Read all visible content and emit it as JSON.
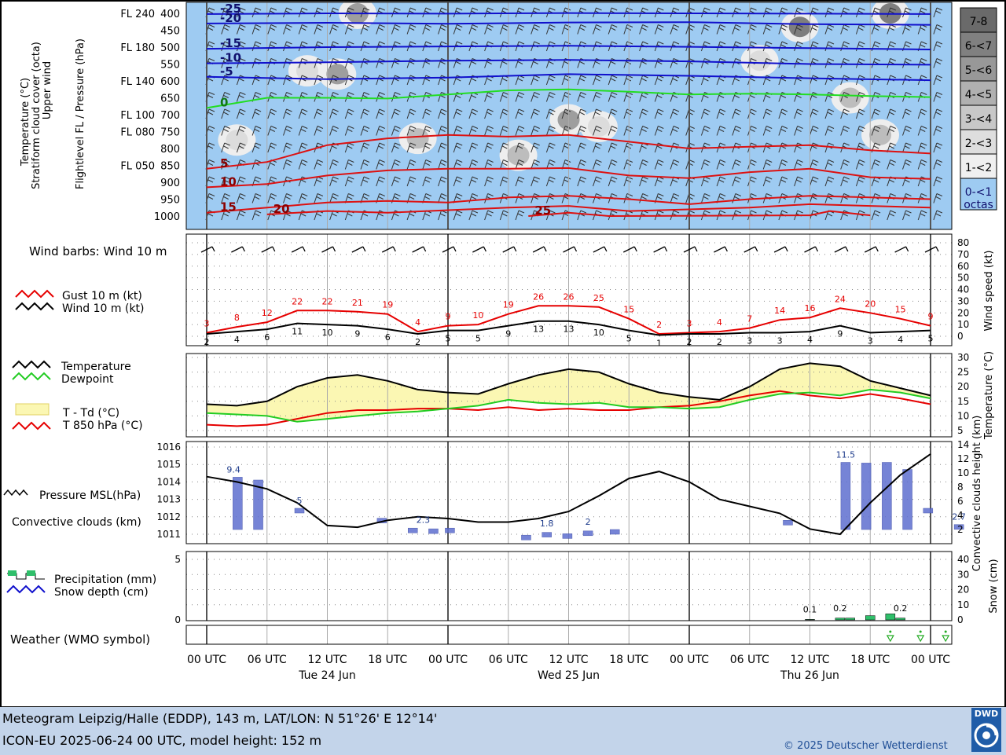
{
  "footer": {
    "line1": "Meteogram Leipzig/Halle (EDDP), 143 m, LAT/LON: N 51°26' E 12°14'",
    "line2": "ICON-EU 2025-06-24 00 UTC, model height: 152 m",
    "copyright": "© 2025 Deutscher Wetterdienst",
    "logo_text": "DWD"
  },
  "panel_labels": {
    "upper": [
      "Temperature (°C)",
      "Stratiform cloud cover (octa)",
      "Upper wind"
    ],
    "upper_axis": "Flightlevel FL / Pressure (hPa)",
    "wind_barbs": "Wind barbs: Wind 10 m",
    "gust": "Gust 10 m (kt)",
    "wind": "Wind 10 m (kt)",
    "wind_axis": "Wind speed (kt)",
    "temperature": "Temperature",
    "dewpoint": "Dewpoint",
    "t_td": "T - Td (°C)",
    "t850": "T 850 hPa (°C)",
    "temp_axis": "Temperature (°C)",
    "pressure": "Pressure MSL(hPa)",
    "convective": "Convective clouds (km)",
    "conv_axis": "Convective clouds height (km)",
    "precip": "Precipitation (mm)",
    "snow": "Snow depth (cm)",
    "snow_axis": "Snow (cm)",
    "weather": "Weather (WMO symbol)"
  },
  "colors": {
    "sky": "#9ecbf2",
    "gust": "#e60000",
    "wind": "#000000",
    "temperature": "#000000",
    "dewpoint": "#22cc22",
    "t_td_fill": "#fbf7b3",
    "t850": "#e60000",
    "iso_neg": "#1010cc",
    "iso_zero": "#22dd22",
    "iso_pos": "#dd1111",
    "conv_bar": "#2a3f9c",
    "precip": "#2fbf6a",
    "footer_bg": "#c3d4ea"
  },
  "x_axis": {
    "ticks": [
      "00 UTC",
      "06 UTC",
      "12 UTC",
      "18 UTC",
      "00 UTC",
      "06 UTC",
      "12 UTC",
      "18 UTC",
      "00 UTC",
      "06 UTC",
      "12 UTC",
      "18 UTC",
      "00 UTC"
    ],
    "days": [
      "Tue 24 Jun",
      "Wed 25 Jun",
      "Thu 26 Jun"
    ]
  },
  "cloud_legend": [
    "7-8",
    "6-<7",
    "5-<6",
    "4-<5",
    "3-<4",
    "2-<3",
    "1-<2",
    "0-<1 octas"
  ],
  "chart_data": [
    {
      "type": "heatmap",
      "title": "Temperature / Stratiform cloud cover / Upper wind",
      "pressure_levels_hPa": [
        400,
        450,
        500,
        550,
        600,
        650,
        700,
        750,
        800,
        850,
        900,
        950,
        1000
      ],
      "flight_levels": {
        "400": "FL 240",
        "500": "FL 180",
        "600": "FL 140",
        "700": "FL 100",
        "750": "FL 080",
        "850": "FL 050"
      },
      "isotherms": [
        {
          "value": -25,
          "label": "-25",
          "points": [
            [
              0,
              402
            ],
            [
              12,
              400
            ],
            [
              24,
              401
            ],
            [
              36,
              399
            ],
            [
              48,
              400
            ],
            [
              60,
              401
            ],
            [
              72,
              402
            ]
          ]
        },
        {
          "value": -20,
          "label": "-20",
          "points": [
            [
              0,
              430
            ],
            [
              12,
              428
            ],
            [
              24,
              431
            ],
            [
              36,
              427
            ],
            [
              48,
              426
            ],
            [
              60,
              432
            ],
            [
              72,
              434
            ]
          ]
        },
        {
          "value": -15,
          "label": "-15",
          "points": [
            [
              0,
              505
            ],
            [
              12,
              500
            ],
            [
              24,
              498
            ],
            [
              36,
              496
            ],
            [
              48,
              499
            ],
            [
              60,
              503
            ],
            [
              72,
              507
            ]
          ]
        },
        {
          "value": -10,
          "label": "-10",
          "points": [
            [
              0,
              548
            ],
            [
              12,
              545
            ],
            [
              24,
              540
            ],
            [
              36,
              538
            ],
            [
              48,
              542
            ],
            [
              60,
              550
            ],
            [
              72,
              552
            ]
          ]
        },
        {
          "value": -5,
          "label": "-5",
          "points": [
            [
              0,
              588
            ],
            [
              12,
              595
            ],
            [
              24,
              590
            ],
            [
              36,
              580
            ],
            [
              48,
              585
            ],
            [
              60,
              592
            ],
            [
              72,
              598
            ]
          ]
        },
        {
          "value": 0,
          "label": "0",
          "points": [
            [
              0,
              680
            ],
            [
              6,
              650
            ],
            [
              12,
              650
            ],
            [
              18,
              652
            ],
            [
              24,
              640
            ],
            [
              30,
              628
            ],
            [
              36,
              625
            ],
            [
              42,
              632
            ],
            [
              48,
              640
            ],
            [
              54,
              638
            ],
            [
              60,
              640
            ],
            [
              66,
              645
            ],
            [
              72,
              648
            ]
          ]
        },
        {
          "value": 5,
          "label": "5",
          "points": [
            [
              0,
              860
            ],
            [
              6,
              840
            ],
            [
              12,
              790
            ],
            [
              18,
              770
            ],
            [
              24,
              760
            ],
            [
              30,
              765
            ],
            [
              36,
              760
            ],
            [
              42,
              780
            ],
            [
              48,
              800
            ],
            [
              54,
              795
            ],
            [
              60,
              790
            ],
            [
              66,
              805
            ],
            [
              72,
              815
            ]
          ]
        },
        {
          "value": 10,
          "label": "10",
          "points": [
            [
              0,
              915
            ],
            [
              6,
              905
            ],
            [
              12,
              880
            ],
            [
              18,
              865
            ],
            [
              24,
              860
            ],
            [
              30,
              860
            ],
            [
              36,
              858
            ],
            [
              42,
              880
            ],
            [
              48,
              888
            ],
            [
              54,
              870
            ],
            [
              60,
              860
            ],
            [
              66,
              885
            ],
            [
              72,
              890
            ]
          ]
        },
        {
          "value": 15,
          "label": "15",
          "points": [
            [
              0,
              990
            ],
            [
              6,
              975
            ],
            [
              12,
              960
            ],
            [
              18,
              955
            ],
            [
              24,
              960
            ],
            [
              30,
              945
            ],
            [
              36,
              940
            ],
            [
              42,
              950
            ],
            [
              48,
              965
            ],
            [
              54,
              950
            ],
            [
              60,
              940
            ],
            [
              66,
              945
            ],
            [
              72,
              950
            ]
          ]
        },
        {
          "value": 20,
          "label": "20",
          "points": [
            [
              6,
              995
            ],
            [
              12,
              985
            ],
            [
              18,
              990
            ],
            [
              30,
              975
            ],
            [
              36,
              970
            ],
            [
              42,
              985
            ],
            [
              54,
              975
            ],
            [
              60,
              965
            ],
            [
              66,
              970
            ],
            [
              72,
              975
            ]
          ]
        },
        {
          "value": 25,
          "label": "25",
          "points": [
            [
              32,
              1000
            ],
            [
              36,
              990
            ],
            [
              40,
              1000
            ],
            [
              60,
              998
            ],
            [
              62,
              985
            ],
            [
              66,
              998
            ]
          ]
        }
      ],
      "cloud_patches_octa": [
        {
          "t": 3,
          "p": 775,
          "octa": "2-<3"
        },
        {
          "t": 10,
          "p": 570,
          "octa": "2-<3"
        },
        {
          "t": 13,
          "p": 580,
          "octa": "4-<5"
        },
        {
          "t": 15,
          "p": 400,
          "octa": "4-<5"
        },
        {
          "t": 21,
          "p": 770,
          "octa": "3-<4"
        },
        {
          "t": 31,
          "p": 820,
          "octa": "3-<4"
        },
        {
          "t": 36,
          "p": 715,
          "octa": "4-<5"
        },
        {
          "t": 39,
          "p": 735,
          "octa": "2-<3"
        },
        {
          "t": 55,
          "p": 540,
          "octa": "2-<3"
        },
        {
          "t": 59,
          "p": 440,
          "octa": "5-<6"
        },
        {
          "t": 64,
          "p": 650,
          "octa": "3-<4"
        },
        {
          "t": 67,
          "p": 760,
          "octa": "3-<4"
        },
        {
          "t": 68,
          "p": 400,
          "octa": "5-<6"
        }
      ]
    },
    {
      "type": "line",
      "title": "Gust / Wind 10 m",
      "ylabel": "Wind speed (kt)",
      "ylim": [
        0,
        80
      ],
      "x_hours": [
        0,
        3,
        6,
        9,
        12,
        15,
        18,
        21,
        24,
        27,
        30,
        33,
        36,
        39,
        42,
        45,
        48,
        51,
        54,
        57,
        60,
        63,
        66,
        69,
        72
      ],
      "series": [
        {
          "name": "Gust 10 m (kt)",
          "values": [
            3,
            8,
            12,
            22,
            22,
            21,
            19,
            4,
            9,
            10,
            19,
            26,
            26,
            25,
            15,
            2,
            3,
            4,
            7,
            14,
            16,
            24,
            20,
            15,
            9
          ]
        },
        {
          "name": "Wind 10 m (kt)",
          "values": [
            2,
            4,
            6,
            11,
            10,
            9,
            6,
            2,
            5,
            5,
            9,
            13,
            13,
            10,
            5,
            1,
            2,
            2,
            3,
            3,
            4,
            9,
            3,
            4,
            5
          ]
        }
      ]
    },
    {
      "type": "line",
      "title": "Temperature / Dewpoint",
      "ylabel": "Temperature (°C)",
      "ylim": [
        5,
        30
      ],
      "x_hours": [
        0,
        3,
        6,
        9,
        12,
        15,
        18,
        21,
        24,
        27,
        30,
        33,
        36,
        39,
        42,
        45,
        48,
        51,
        54,
        57,
        60,
        63,
        66,
        69,
        72
      ],
      "series": [
        {
          "name": "Temperature",
          "values": [
            14,
            13.5,
            15,
            20,
            23,
            24,
            22,
            19,
            18,
            17.5,
            21,
            24,
            26,
            25,
            21,
            18,
            16.5,
            15.5,
            20,
            26,
            28,
            27,
            22,
            19.5,
            17
          ]
        },
        {
          "name": "Dewpoint",
          "values": [
            11,
            10.5,
            10,
            8,
            9,
            10,
            11,
            11.5,
            12.5,
            13.5,
            15.5,
            14.5,
            14,
            14.5,
            13,
            13,
            12.5,
            13,
            15.5,
            17.5,
            18,
            17,
            19,
            18,
            16
          ]
        },
        {
          "name": "T 850 hPa (°C)",
          "values": [
            7,
            6.5,
            7,
            9,
            11,
            12,
            12,
            12.5,
            12.5,
            12,
            13,
            12,
            12.5,
            12,
            12,
            13,
            13.5,
            15,
            17,
            18.5,
            17,
            16,
            17.5,
            16,
            14
          ]
        }
      ]
    },
    {
      "type": "line",
      "title": "Pressure MSL / Convective clouds",
      "ylabel": "Pressure MSL(hPa)",
      "y2label": "Convective clouds height (km)",
      "ylim": [
        1011,
        1016
      ],
      "y2lim": [
        0,
        14
      ],
      "x_hours": [
        0,
        3,
        6,
        9,
        12,
        15,
        18,
        21,
        24,
        27,
        30,
        33,
        36,
        39,
        42,
        45,
        48,
        51,
        54,
        57,
        60,
        63,
        66,
        69,
        72
      ],
      "series": [
        {
          "name": "Pressure MSL(hPa)",
          "values": [
            1014.3,
            1014.0,
            1013.6,
            1012.8,
            1011.5,
            1011.4,
            1011.8,
            1012.0,
            1011.9,
            1011.7,
            1011.7,
            1011.9,
            1012.3,
            1013.2,
            1014.2,
            1014.6,
            1014.0,
            1013.0,
            1012.6,
            1012.2,
            1011.3,
            1011.0,
            1012.8,
            1014.4,
            1015.6
          ]
        }
      ],
      "convective_labels": [
        {
          "x": 1.3,
          "value": 9.4
        },
        {
          "x": 4.5,
          "value": 5
        },
        {
          "x": 10.5,
          "value": 2.3
        },
        {
          "x": 16.5,
          "value": 1.8
        },
        {
          "x": 18.5,
          "value": 2
        },
        {
          "x": 31,
          "value": 11.5
        },
        {
          "x": 36.5,
          "value": 2.7
        }
      ]
    },
    {
      "type": "bar",
      "title": "Precipitation / Snow depth",
      "ylabel": "Precipitation (mm)",
      "y2label": "Snow (cm)",
      "ylim": [
        0,
        5
      ],
      "y2lim": [
        0,
        40
      ],
      "labels": [
        {
          "x": 60,
          "value": 0.1
        },
        {
          "x": 63,
          "value": 0.2
        },
        {
          "x": 69,
          "value": 0.2
        }
      ]
    }
  ]
}
